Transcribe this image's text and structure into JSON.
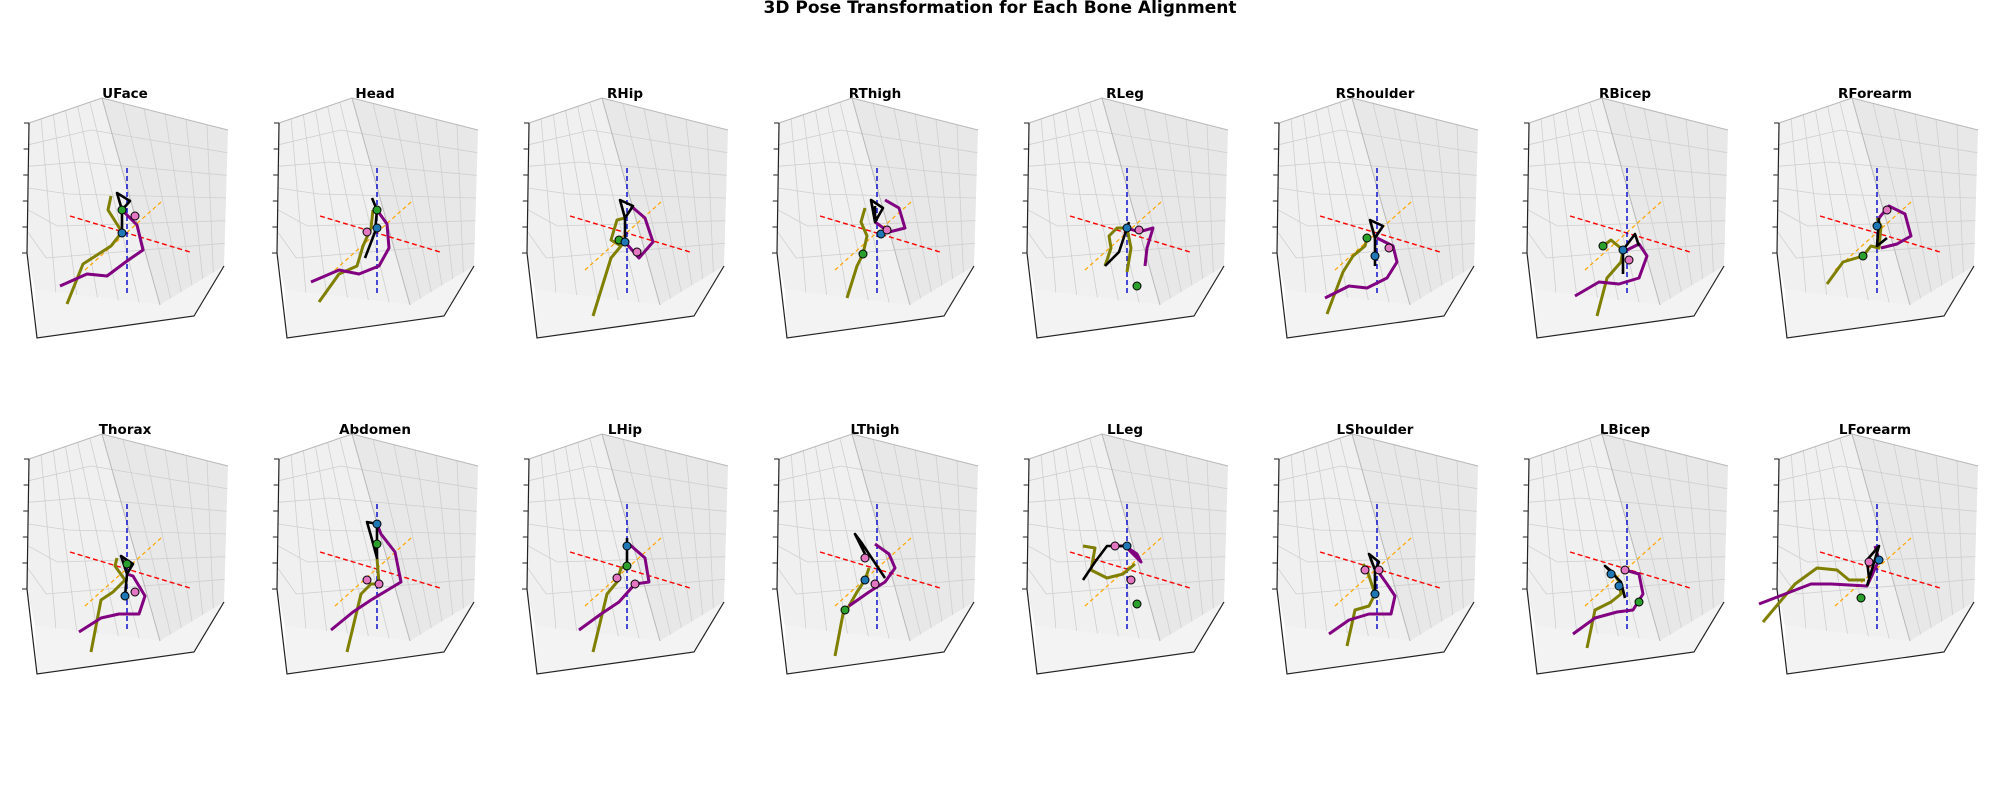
{
  "chart_data": {
    "type": "3d-line",
    "title": "3D Pose Transformation for Each Bone Alignment",
    "grid": true,
    "layout": "2x8",
    "colors": {
      "x_axis_line": "#ff0000",
      "y_axis_line": "#ffa500",
      "z_axis_line": "#0000cc",
      "torso": "#000000",
      "right_side": "#808000",
      "left_side": "#800080",
      "joint_blue": "#1f77b4",
      "joint_green": "#2ca02c",
      "joint_pink": "#e377c2"
    },
    "panels": [
      {
        "title": "UFace"
      },
      {
        "title": "Head"
      },
      {
        "title": "RHip"
      },
      {
        "title": "RThigh"
      },
      {
        "title": "RLeg"
      },
      {
        "title": "RShoulder"
      },
      {
        "title": "RBicep"
      },
      {
        "title": "RForearm"
      },
      {
        "title": "Thorax"
      },
      {
        "title": "Abdomen"
      },
      {
        "title": "LHip"
      },
      {
        "title": "LThigh"
      },
      {
        "title": "LLeg"
      },
      {
        "title": "LShoulder"
      },
      {
        "title": "LBicep"
      },
      {
        "title": "LForearm"
      }
    ]
  }
}
